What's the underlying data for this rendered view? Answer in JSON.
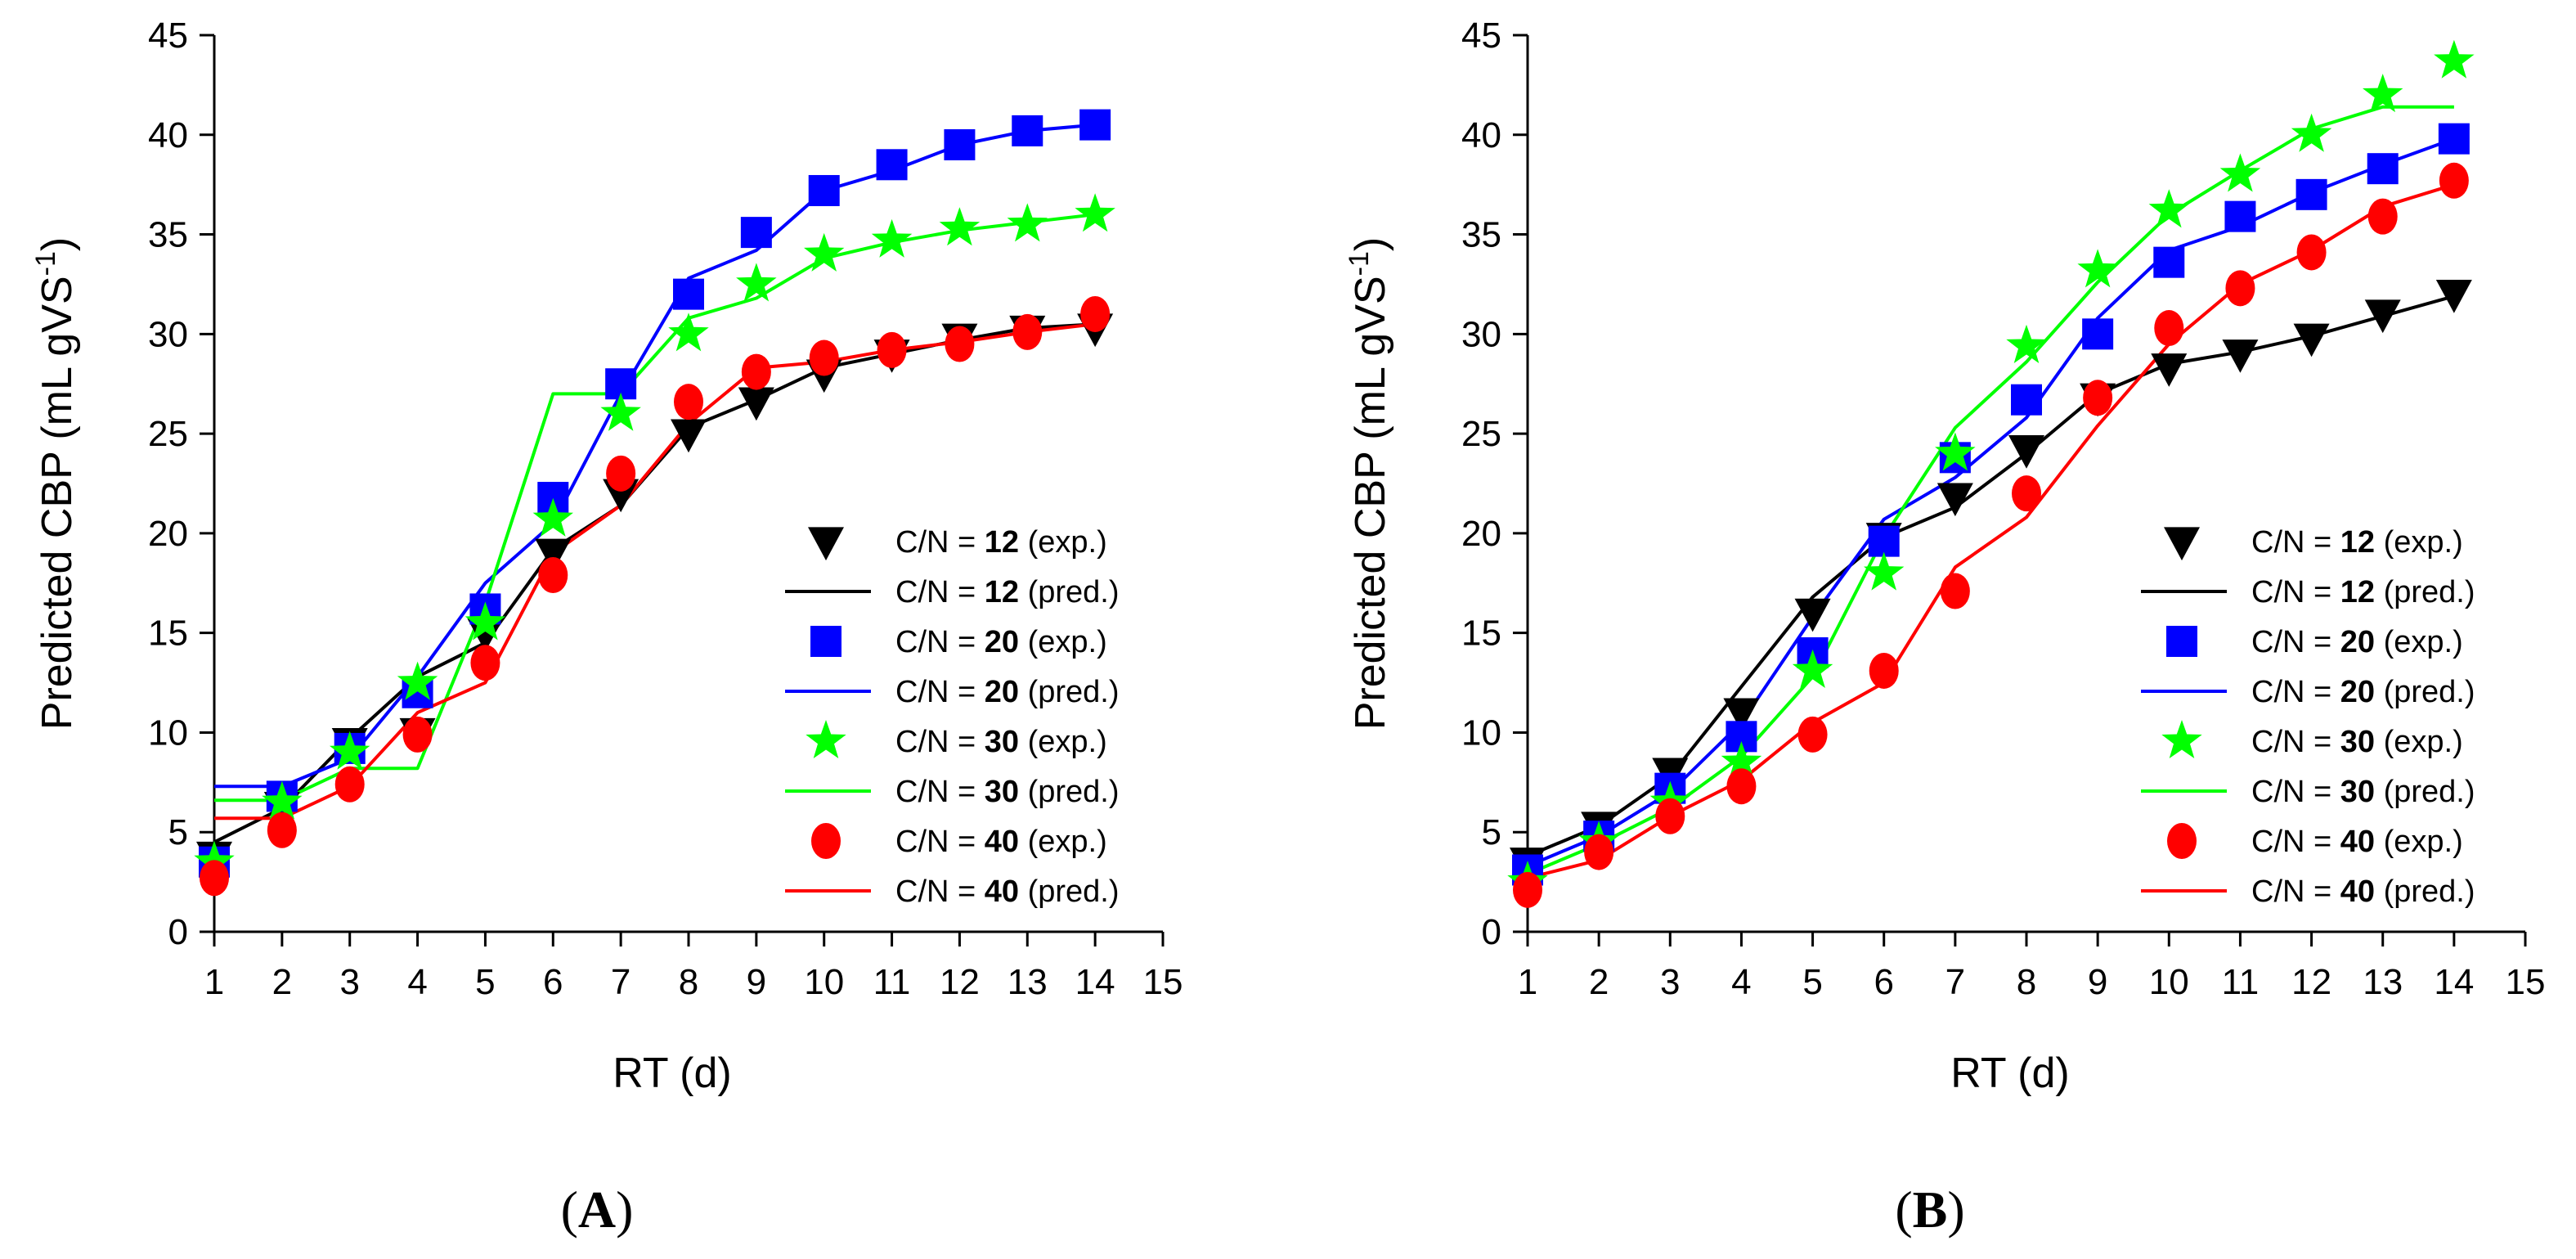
{
  "chart_data": [
    {
      "type": "line",
      "panel_label": "A",
      "xlabel": "RT (d)",
      "ylabel": "Predicted CBP (mL gVS",
      "ylabel_sup": "-1",
      "ylabel_close": ")",
      "xlim": [
        1,
        15
      ],
      "ylim": [
        0,
        45
      ],
      "xticks": [
        1,
        2,
        3,
        4,
        5,
        6,
        7,
        8,
        9,
        10,
        11,
        12,
        13,
        14,
        15
      ],
      "yticks": [
        0,
        5,
        10,
        15,
        20,
        25,
        30,
        35,
        40,
        45
      ],
      "legend_position": "bottom-right",
      "x": [
        1,
        2,
        3,
        4,
        5,
        6,
        7,
        8,
        9,
        10,
        11,
        12,
        13,
        14
      ],
      "series": [
        {
          "name": "C/N = 12 (exp.)",
          "prefix": "C/N = ",
          "value": "12",
          "suffix": " (exp.)",
          "kind": "exp",
          "marker": "triangle-down",
          "color": "#000000",
          "values": [
            3.8,
            6.3,
            9.5,
            10.0,
            15.0,
            19.0,
            22.0,
            25.0,
            26.6,
            28.0,
            29.0,
            29.8,
            30.2,
            30.3
          ]
        },
        {
          "name": "C/N = 12 (pred.)",
          "prefix": "C/N = ",
          "value": "12",
          "suffix": " (pred.)",
          "kind": "pred",
          "color": "#000000",
          "values": [
            4.5,
            6.2,
            9.7,
            12.8,
            14.5,
            19.2,
            21.4,
            25.3,
            26.7,
            28.3,
            29.0,
            29.7,
            30.3,
            30.5
          ]
        },
        {
          "name": "C/N = 20 (exp.)",
          "prefix": "C/N = ",
          "value": "20",
          "suffix": " (exp.)",
          "kind": "exp",
          "marker": "square",
          "color": "#0000ff",
          "values": [
            3.5,
            6.8,
            9.2,
            12.0,
            16.2,
            21.8,
            27.5,
            32.0,
            35.1,
            37.2,
            38.5,
            39.5,
            40.2,
            40.5
          ]
        },
        {
          "name": "C/N = 20 (pred.)",
          "prefix": "C/N = ",
          "value": "20",
          "suffix": " (pred.)",
          "kind": "pred",
          "color": "#0000ff",
          "values": [
            7.3,
            7.3,
            8.7,
            12.8,
            17.5,
            20.5,
            27.0,
            32.8,
            34.2,
            37.2,
            38.2,
            39.5,
            40.2,
            40.5
          ]
        },
        {
          "name": "C/N = 30 (exp.)",
          "prefix": "C/N = ",
          "value": "30",
          "suffix": " (exp.)",
          "kind": "exp",
          "marker": "star",
          "color": "#00ff00",
          "values": [
            3.5,
            6.5,
            9.0,
            12.5,
            15.5,
            20.7,
            26.0,
            30.0,
            32.5,
            34.0,
            34.7,
            35.3,
            35.5,
            36.0
          ]
        },
        {
          "name": "C/N = 30 (pred.)",
          "prefix": "C/N = ",
          "value": "30",
          "suffix": " (pred.)",
          "kind": "pred",
          "color": "#00ff00",
          "values": [
            6.6,
            6.6,
            8.2,
            8.2,
            16.5,
            27.0,
            27.0,
            30.8,
            31.8,
            33.8,
            34.6,
            35.2,
            35.6,
            36.0
          ]
        },
        {
          "name": "C/N = 40 (exp.)",
          "prefix": "C/N = ",
          "value": "40",
          "suffix": " (exp.)",
          "kind": "exp",
          "marker": "circle",
          "color": "#ff0000",
          "values": [
            2.7,
            5.1,
            7.4,
            9.9,
            13.5,
            17.9,
            23.0,
            26.6,
            28.1,
            28.8,
            29.2,
            29.5,
            30.1,
            31.0
          ]
        },
        {
          "name": "C/N = 40 (pred.)",
          "prefix": "C/N = ",
          "value": "40",
          "suffix": " (pred.)",
          "kind": "pred",
          "color": "#ff0000",
          "values": [
            5.7,
            5.7,
            7.3,
            11.0,
            12.5,
            19.0,
            21.4,
            25.5,
            28.3,
            28.6,
            29.2,
            29.6,
            30.1,
            30.5
          ]
        }
      ]
    },
    {
      "type": "line",
      "panel_label": "B",
      "xlabel": "RT (d)",
      "ylabel": "Predicted CBP (mL gVS",
      "ylabel_sup": "-1",
      "ylabel_close": ")",
      "xlim": [
        1,
        15
      ],
      "ylim": [
        0,
        45
      ],
      "xticks": [
        1,
        2,
        3,
        4,
        5,
        6,
        7,
        8,
        9,
        10,
        11,
        12,
        13,
        14,
        15
      ],
      "yticks": [
        0,
        5,
        10,
        15,
        20,
        25,
        30,
        35,
        40,
        45
      ],
      "legend_position": "bottom-right",
      "x": [
        1,
        2,
        3,
        4,
        5,
        6,
        7,
        8,
        9,
        10,
        11,
        12,
        13,
        14
      ],
      "series": [
        {
          "name": "C/N = 12 (exp.)",
          "prefix": "C/N = ",
          "value": "12",
          "suffix": " (exp.)",
          "kind": "exp",
          "marker": "triangle-down",
          "color": "#000000",
          "values": [
            3.5,
            5.3,
            8.0,
            11.0,
            16.0,
            19.8,
            21.8,
            24.2,
            26.8,
            28.3,
            29.0,
            29.8,
            31.0,
            32.0
          ]
        },
        {
          "name": "C/N = 12 (pred.)",
          "prefix": "C/N = ",
          "value": "12",
          "suffix": " (pred.)",
          "kind": "pred",
          "color": "#000000",
          "values": [
            3.8,
            5.3,
            7.8,
            12.3,
            16.8,
            19.8,
            21.3,
            24.0,
            27.0,
            28.5,
            29.1,
            29.9,
            30.9,
            31.9
          ]
        },
        {
          "name": "C/N = 20 (exp.)",
          "prefix": "C/N = ",
          "value": "20",
          "suffix": " (exp.)",
          "kind": "exp",
          "marker": "square",
          "color": "#0000ff",
          "values": [
            3.1,
            4.8,
            7.2,
            9.8,
            14.0,
            19.6,
            23.8,
            26.7,
            30.0,
            33.6,
            35.9,
            37.0,
            38.3,
            39.8
          ]
        },
        {
          "name": "C/N = 20 (pred.)",
          "prefix": "C/N = ",
          "value": "20",
          "suffix": " (pred.)",
          "kind": "pred",
          "color": "#0000ff",
          "values": [
            3.3,
            4.8,
            7.0,
            10.5,
            15.8,
            20.7,
            22.8,
            25.8,
            30.8,
            34.2,
            35.4,
            37.1,
            38.5,
            39.8
          ]
        },
        {
          "name": "C/N = 30 (exp.)",
          "prefix": "C/N = ",
          "value": "30",
          "suffix": " (exp.)",
          "kind": "exp",
          "marker": "star",
          "color": "#00ff00",
          "values": [
            2.5,
            4.5,
            6.5,
            8.5,
            13.1,
            18.0,
            24.0,
            29.4,
            33.2,
            36.2,
            38.0,
            40.0,
            42.0,
            43.7
          ]
        },
        {
          "name": "C/N = 30 (pred.)",
          "prefix": "C/N = ",
          "value": "30",
          "suffix": " (pred.)",
          "kind": "pred",
          "color": "#00ff00",
          "values": [
            2.9,
            4.4,
            6.2,
            8.8,
            12.8,
            19.8,
            25.3,
            28.6,
            32.6,
            36.0,
            38.2,
            40.3,
            41.4,
            41.4
          ]
        },
        {
          "name": "C/N = 40 (exp.)",
          "prefix": "C/N = ",
          "value": "40",
          "suffix": " (exp.)",
          "kind": "exp",
          "marker": "circle",
          "color": "#ff0000",
          "values": [
            2.1,
            4.0,
            5.8,
            7.3,
            9.9,
            13.1,
            17.1,
            22.0,
            26.8,
            30.3,
            32.3,
            34.1,
            35.9,
            37.7
          ]
        },
        {
          "name": "C/N = 40 (pred.)",
          "prefix": "C/N = ",
          "value": "40",
          "suffix": " (pred.)",
          "kind": "pred",
          "color": "#ff0000",
          "values": [
            2.7,
            3.6,
            5.8,
            7.6,
            10.5,
            12.5,
            18.3,
            20.8,
            25.4,
            29.5,
            32.5,
            34.2,
            36.4,
            37.5
          ]
        }
      ]
    }
  ]
}
